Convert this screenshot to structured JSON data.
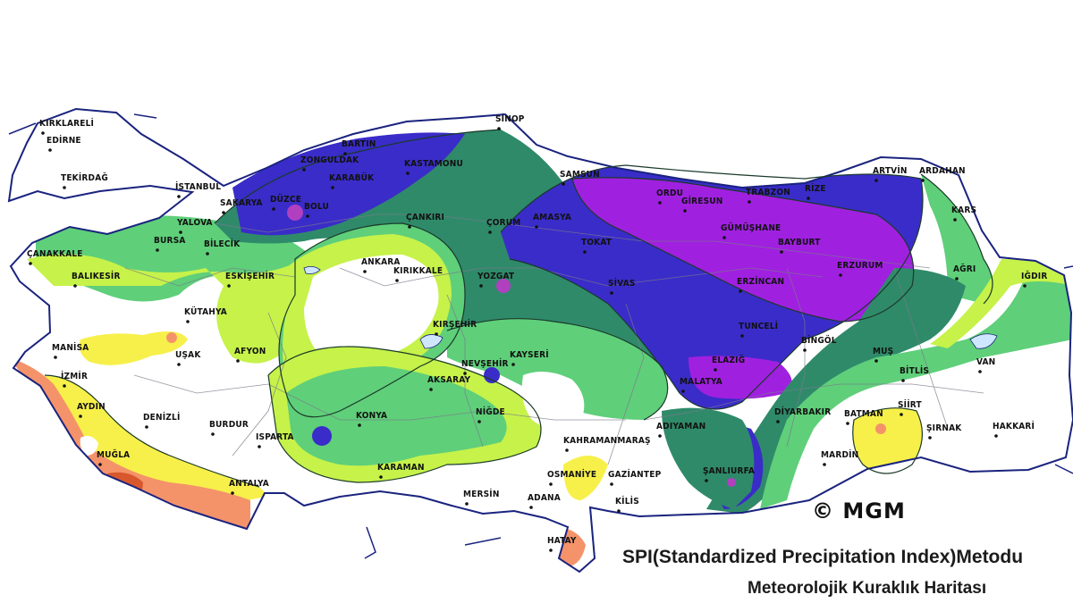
{
  "map": {
    "copyright": "© MGM",
    "caption_line1": "SPI(Standardized Precipitation Index)Metodu",
    "caption_line2": "Meteorolojik Kuraklık Haritası",
    "colors": {
      "border": "#1a237e",
      "outside": "#ffffff",
      "normal": "#ffffff",
      "lime": "#c6f24a",
      "yellow": "#f7f04a",
      "orange": "#f4936a",
      "darkorange": "#d8582e",
      "green": "#5fcf7a",
      "teal": "#2f8a6a",
      "blue": "#3a2cc8",
      "purple": "#a020e0",
      "magenta": "#b040c0"
    },
    "cities": [
      {
        "name": "KIRKLARELİ"
      },
      {
        "name": "EDİRNE"
      },
      {
        "name": "TEKİRDAĞ"
      },
      {
        "name": "İSTANBUL"
      },
      {
        "name": "ÇANAKKALE"
      },
      {
        "name": "BALIKESİR"
      },
      {
        "name": "BURSA"
      },
      {
        "name": "YALOVA"
      },
      {
        "name": "BİLECİK"
      },
      {
        "name": "SAKARYA"
      },
      {
        "name": "DÜZCE"
      },
      {
        "name": "BOLU"
      },
      {
        "name": "ZONGULDAK"
      },
      {
        "name": "BARTIN"
      },
      {
        "name": "KARABÜK"
      },
      {
        "name": "KASTAMONU"
      },
      {
        "name": "SİNOP"
      },
      {
        "name": "SAMSUN"
      },
      {
        "name": "ORDU"
      },
      {
        "name": "GİRESUN"
      },
      {
        "name": "TRABZON"
      },
      {
        "name": "RİZE"
      },
      {
        "name": "ARTVİN"
      },
      {
        "name": "ARDAHAN"
      },
      {
        "name": "KARS"
      },
      {
        "name": "IĞDIR"
      },
      {
        "name": "AĞRI"
      },
      {
        "name": "ERZURUM"
      },
      {
        "name": "BAYBURT"
      },
      {
        "name": "GÜMÜŞHANE"
      },
      {
        "name": "ERZİNCAN"
      },
      {
        "name": "TUNCELİ"
      },
      {
        "name": "BİNGÖL"
      },
      {
        "name": "MUŞ"
      },
      {
        "name": "BİTLİS"
      },
      {
        "name": "VAN"
      },
      {
        "name": "HAKKARİ"
      },
      {
        "name": "ŞIRNAK"
      },
      {
        "name": "SİİRT"
      },
      {
        "name": "BATMAN"
      },
      {
        "name": "MARDİN"
      },
      {
        "name": "DİYARBAKIR"
      },
      {
        "name": "ŞANLIURFA"
      },
      {
        "name": "ADIYAMAN"
      },
      {
        "name": "MALATYA"
      },
      {
        "name": "ELAZIĞ"
      },
      {
        "name": "SİVAS"
      },
      {
        "name": "TOKAT"
      },
      {
        "name": "AMASYA"
      },
      {
        "name": "ÇORUM"
      },
      {
        "name": "YOZGAT"
      },
      {
        "name": "ÇANKIRI"
      },
      {
        "name": "ANKARA"
      },
      {
        "name": "KIRIKKALE"
      },
      {
        "name": "KIRŞEHİR"
      },
      {
        "name": "NEVŞEHİR"
      },
      {
        "name": "KAYSERİ"
      },
      {
        "name": "AKSARAY"
      },
      {
        "name": "NİĞDE"
      },
      {
        "name": "KONYA"
      },
      {
        "name": "KARAMAN"
      },
      {
        "name": "ESKİŞEHİR"
      },
      {
        "name": "KÜTAHYA"
      },
      {
        "name": "AFYON"
      },
      {
        "name": "UŞAK"
      },
      {
        "name": "MANİSA"
      },
      {
        "name": "İZMİR"
      },
      {
        "name": "AYDIN"
      },
      {
        "name": "DENİZLİ"
      },
      {
        "name": "MUĞLA"
      },
      {
        "name": "BURDUR"
      },
      {
        "name": "ISPARTA"
      },
      {
        "name": "ANTALYA"
      },
      {
        "name": "MERSİN"
      },
      {
        "name": "ADANA"
      },
      {
        "name": "OSMANİYE"
      },
      {
        "name": "KAHRAMANMARAŞ"
      },
      {
        "name": "GAZİANTEP"
      },
      {
        "name": "KİLİS"
      },
      {
        "name": "HATAY"
      }
    ]
  }
}
